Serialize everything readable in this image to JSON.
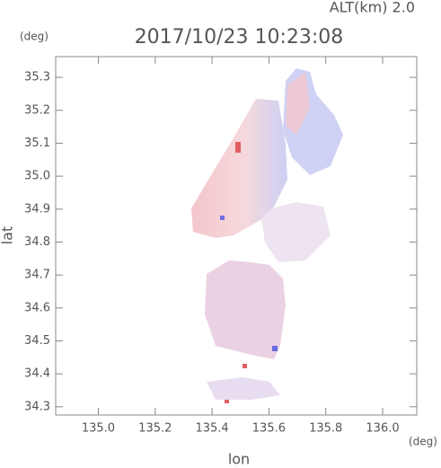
{
  "chart_data": {
    "type": "map",
    "title": "2017/10/23 10:23:08",
    "subtitle": "ALT(km) 2.0",
    "x_label": "lon",
    "y_label": "lat",
    "x_unit": "(deg)",
    "y_unit": "(deg)",
    "xlim": [
      134.85,
      136.12
    ],
    "ylim": [
      34.275,
      35.363
    ],
    "xticks": [
      {
        "value": 135,
        "label": "135.0"
      },
      135.2,
      135.4,
      135.6,
      135.8,
      {
        "value": 136,
        "label": "136.0"
      }
    ],
    "yticks": [
      34.3,
      34.4,
      34.5,
      34.6,
      34.7,
      34.8,
      34.9,
      {
        "value": 35,
        "label": "35.0"
      },
      35.1,
      35.2,
      35.3
    ]
  }
}
